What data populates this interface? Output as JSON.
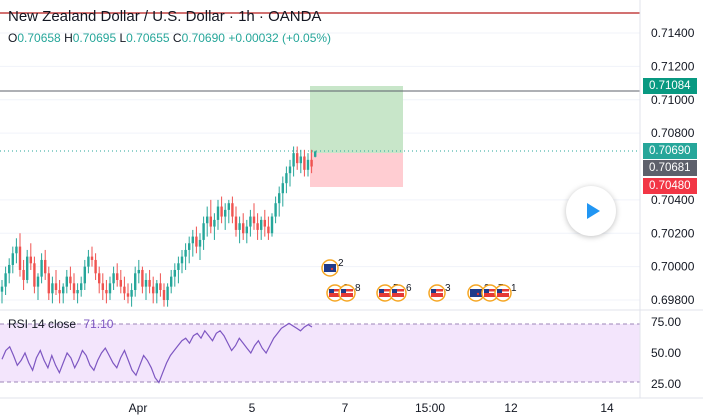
{
  "header": {
    "title": "New Zealand Dollar / U.S. Dollar · 1h · OANDA",
    "ohlc": [
      {
        "key": "O",
        "value": "0.70658"
      },
      {
        "key": "H",
        "value": "0.70695"
      },
      {
        "key": "L",
        "value": "0.70655"
      },
      {
        "key": "C",
        "value": "0.70690"
      }
    ],
    "change": "+0.00032 (+0.05%)"
  },
  "price_axis": {
    "ticks": [
      "0.71400",
      "0.71200",
      "0.71000",
      "0.70800",
      "0.70400",
      "0.70200",
      "0.70000",
      "0.69800"
    ],
    "badges": {
      "target": "0.71084",
      "current": "0.70690",
      "entry": "0.70681",
      "stop": "0.70480"
    }
  },
  "rsi": {
    "label": "RSI",
    "params": "14 close",
    "value": "71.10",
    "ticks": [
      "75.00",
      "50.00",
      "25.00"
    ]
  },
  "time_axis": {
    "labels": [
      "Apr",
      "5",
      "7",
      "15:00",
      "12",
      "14"
    ]
  },
  "events": {
    "labels": [
      "2",
      "2",
      "8",
      "5",
      "6",
      "3",
      "2",
      "7",
      "1"
    ]
  },
  "colors": {
    "up": "#26a69a",
    "down": "#ef5350",
    "rsi_line": "#7e57c2",
    "rsi_band": "#f3e5fc",
    "target_zone": "#c8e6c9",
    "stop_zone": "#ffcdd2",
    "target_badge": "#089981",
    "current_badge": "#26a69a",
    "entry_badge": "#5d606b",
    "stop_badge": "#f23645",
    "play": "#2196f3"
  },
  "chart_data": {
    "type": "candlestick",
    "symbol": "New Zealand Dollar / U.S. Dollar",
    "interval": "1h",
    "source": "OANDA",
    "ylim": [
      0.6975,
      0.7155
    ],
    "candles": [
      [
        0.6985,
        0.6992,
        0.6978,
        0.6988
      ],
      [
        0.6988,
        0.7,
        0.6983,
        0.6996
      ],
      [
        0.6996,
        0.7005,
        0.699,
        0.7001
      ],
      [
        0.7001,
        0.7012,
        0.6996,
        0.7008
      ],
      [
        0.7008,
        0.7017,
        0.7002,
        0.7012
      ],
      [
        0.7012,
        0.702,
        0.6994,
        0.6998
      ],
      [
        0.6998,
        0.7004,
        0.6986,
        0.6992
      ],
      [
        0.6992,
        0.701,
        0.699,
        0.7006
      ],
      [
        0.7006,
        0.7014,
        0.6998,
        0.7002
      ],
      [
        0.7002,
        0.7006,
        0.6984,
        0.6988
      ],
      [
        0.6988,
        0.6996,
        0.698,
        0.6994
      ],
      [
        0.6994,
        0.7008,
        0.699,
        0.7004
      ],
      [
        0.7004,
        0.701,
        0.6992,
        0.6996
      ],
      [
        0.6996,
        0.7,
        0.698,
        0.6984
      ],
      [
        0.6984,
        0.6994,
        0.6978,
        0.699
      ],
      [
        0.699,
        0.6998,
        0.6983,
        0.6986
      ],
      [
        0.6986,
        0.6992,
        0.6978,
        0.6984
      ],
      [
        0.6984,
        0.699,
        0.6978,
        0.6988
      ],
      [
        0.6988,
        0.6998,
        0.6984,
        0.6994
      ],
      [
        0.6994,
        0.7,
        0.6986,
        0.699
      ],
      [
        0.699,
        0.6996,
        0.698,
        0.6984
      ],
      [
        0.6984,
        0.699,
        0.6978,
        0.6986
      ],
      [
        0.6986,
        0.6994,
        0.6982,
        0.699
      ],
      [
        0.699,
        0.7004,
        0.6986,
        0.7
      ],
      [
        0.7,
        0.701,
        0.6996,
        0.7006
      ],
      [
        0.7006,
        0.7012,
        0.7,
        0.7004
      ],
      [
        0.7004,
        0.7008,
        0.6992,
        0.6996
      ],
      [
        0.6996,
        0.7,
        0.6984,
        0.699
      ],
      [
        0.699,
        0.6996,
        0.698,
        0.6986
      ],
      [
        0.6986,
        0.6992,
        0.6978,
        0.6984
      ],
      [
        0.6984,
        0.6994,
        0.698,
        0.699
      ],
      [
        0.699,
        0.7,
        0.6986,
        0.6996
      ],
      [
        0.6996,
        0.7002,
        0.6988,
        0.6992
      ],
      [
        0.6992,
        0.6998,
        0.6984,
        0.6988
      ],
      [
        0.6988,
        0.6994,
        0.698,
        0.6984
      ],
      [
        0.6984,
        0.699,
        0.6978,
        0.6982
      ],
      [
        0.6982,
        0.699,
        0.6976,
        0.6986
      ],
      [
        0.6986,
        0.7,
        0.6982,
        0.6996
      ],
      [
        0.6996,
        0.7004,
        0.699,
        0.6998
      ],
      [
        0.6998,
        0.7,
        0.6984,
        0.6988
      ],
      [
        0.6988,
        0.6996,
        0.698,
        0.6992
      ],
      [
        0.6992,
        0.6998,
        0.6984,
        0.6988
      ],
      [
        0.6988,
        0.6994,
        0.6978,
        0.6984
      ],
      [
        0.6984,
        0.6992,
        0.6978,
        0.699
      ],
      [
        0.699,
        0.6996,
        0.6982,
        0.6986
      ],
      [
        0.6986,
        0.699,
        0.6976,
        0.698
      ],
      [
        0.698,
        0.699,
        0.6976,
        0.6988
      ],
      [
        0.6988,
        0.6998,
        0.6984,
        0.6994
      ],
      [
        0.6994,
        0.7002,
        0.6988,
        0.6998
      ],
      [
        0.6998,
        0.7006,
        0.699,
        0.7002
      ],
      [
        0.7002,
        0.701,
        0.6996,
        0.7006
      ],
      [
        0.7006,
        0.7014,
        0.6998,
        0.701
      ],
      [
        0.701,
        0.7018,
        0.7002,
        0.7014
      ],
      [
        0.7014,
        0.7022,
        0.7006,
        0.7018
      ],
      [
        0.7018,
        0.7024,
        0.7008,
        0.7012
      ],
      [
        0.7012,
        0.702,
        0.7004,
        0.7016
      ],
      [
        0.7016,
        0.703,
        0.701,
        0.7026
      ],
      [
        0.7026,
        0.7036,
        0.7018,
        0.703
      ],
      [
        0.703,
        0.704,
        0.702,
        0.7024
      ],
      [
        0.7024,
        0.7032,
        0.7016,
        0.7028
      ],
      [
        0.7028,
        0.704,
        0.7022,
        0.7036
      ],
      [
        0.7036,
        0.7042,
        0.7026,
        0.703
      ],
      [
        0.703,
        0.7038,
        0.7022,
        0.7034
      ],
      [
        0.7034,
        0.704,
        0.7026,
        0.7038
      ],
      [
        0.7038,
        0.7042,
        0.7026,
        0.703
      ],
      [
        0.703,
        0.7036,
        0.7018,
        0.7022
      ],
      [
        0.7022,
        0.703,
        0.7014,
        0.7026
      ],
      [
        0.7026,
        0.7032,
        0.7016,
        0.702
      ],
      [
        0.702,
        0.7028,
        0.7014,
        0.7024
      ],
      [
        0.7024,
        0.7034,
        0.7018,
        0.703
      ],
      [
        0.703,
        0.7038,
        0.7022,
        0.7026
      ],
      [
        0.7026,
        0.7032,
        0.7016,
        0.7022
      ],
      [
        0.7022,
        0.703,
        0.7016,
        0.7028
      ],
      [
        0.7028,
        0.7034,
        0.7018,
        0.7024
      ],
      [
        0.7024,
        0.703,
        0.7016,
        0.702
      ],
      [
        0.702,
        0.7032,
        0.7018,
        0.703
      ],
      [
        0.703,
        0.7042,
        0.7026,
        0.7038
      ],
      [
        0.7038,
        0.7048,
        0.703,
        0.7044
      ],
      [
        0.7044,
        0.7054,
        0.7036,
        0.705
      ],
      [
        0.705,
        0.706,
        0.7044,
        0.7056
      ],
      [
        0.7056,
        0.7064,
        0.7048,
        0.706
      ],
      [
        0.706,
        0.7072,
        0.7054,
        0.7068
      ],
      [
        0.7068,
        0.7072,
        0.7058,
        0.7062
      ],
      [
        0.7062,
        0.707,
        0.7056,
        0.7066
      ],
      [
        0.7066,
        0.707,
        0.7054,
        0.7058
      ],
      [
        0.7058,
        0.7068,
        0.7054,
        0.7064
      ],
      [
        0.7064,
        0.707,
        0.7056,
        0.706
      ],
      [
        0.70658,
        0.70695,
        0.70655,
        0.7069
      ]
    ],
    "rsi": {
      "ylim": [
        20,
        80
      ],
      "bands": [
        30,
        70
      ],
      "values": [
        45,
        52,
        55,
        48,
        40,
        44,
        50,
        42,
        36,
        46,
        52,
        44,
        38,
        48,
        40,
        34,
        42,
        50,
        46,
        38,
        44,
        52,
        48,
        40,
        36,
        44,
        50,
        54,
        48,
        42,
        38,
        46,
        52,
        44,
        36,
        32,
        40,
        48,
        44,
        38,
        30,
        26,
        34,
        42,
        48,
        52,
        56,
        60,
        62,
        58,
        64,
        66,
        62,
        68,
        64,
        60,
        66,
        68,
        64,
        58,
        52,
        56,
        62,
        58,
        54,
        50,
        56,
        60,
        54,
        50,
        56,
        62,
        66,
        70,
        72,
        74,
        72,
        70,
        68,
        71,
        73,
        71.1
      ]
    }
  }
}
